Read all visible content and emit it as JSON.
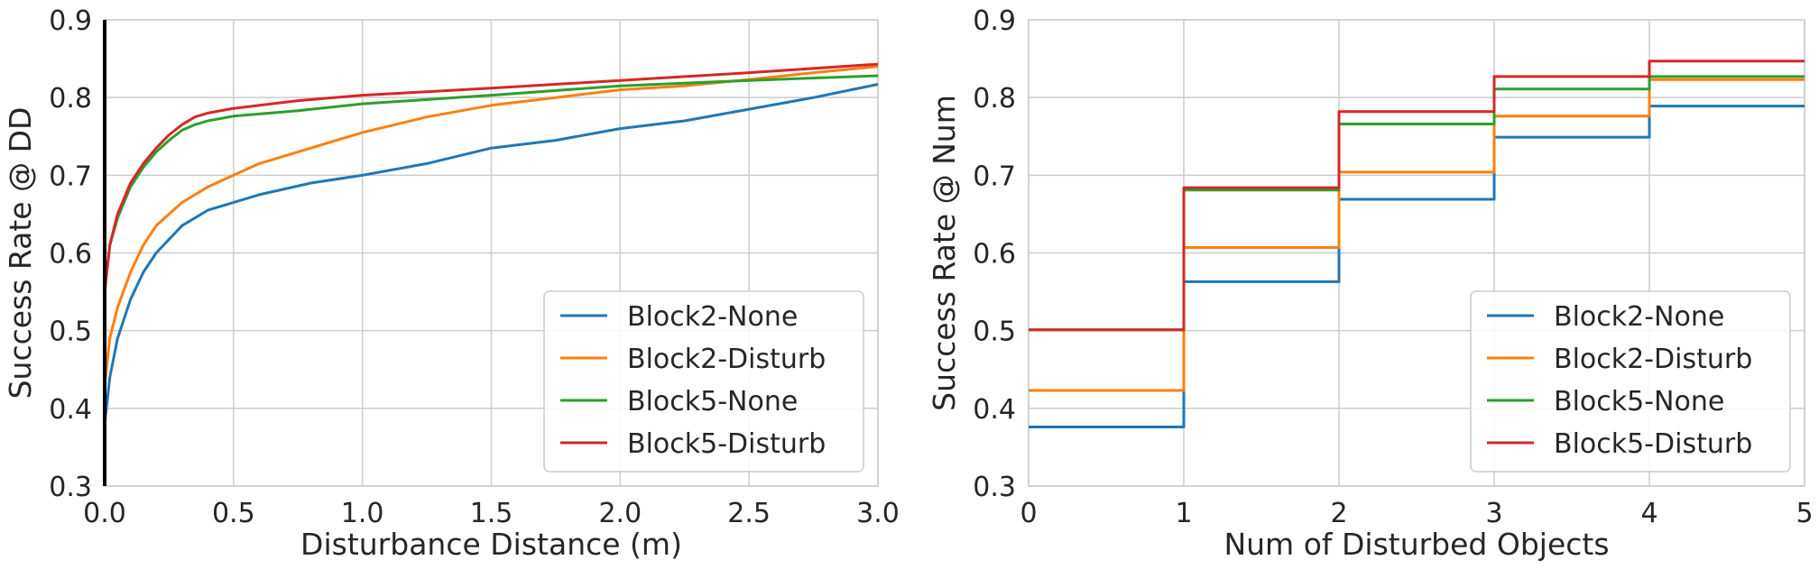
{
  "colors": {
    "Block2-None": "#1f77b4",
    "Block2-Disturb": "#ff7f0e",
    "Block5-None": "#2ca02c",
    "Block5-Disturb": "#d62728"
  },
  "chart_data": [
    {
      "type": "line",
      "xlabel": "Disturbance Distance (m)",
      "ylabel": "Success Rate @ DD",
      "xlim": [
        0.0,
        3.0
      ],
      "ylim": [
        0.3,
        0.9
      ],
      "xticks": [
        "0.0",
        "0.5",
        "1.0",
        "1.5",
        "2.0",
        "2.5",
        "3.0"
      ],
      "yticks": [
        "0.3",
        "0.4",
        "0.5",
        "0.6",
        "0.7",
        "0.8",
        "0.9"
      ],
      "grid": true,
      "legend": "lower-right",
      "series": [
        {
          "name": "Block2-None",
          "x": [
            0.0,
            0.02,
            0.05,
            0.1,
            0.15,
            0.2,
            0.3,
            0.4,
            0.5,
            0.6,
            0.8,
            1.0,
            1.25,
            1.5,
            1.75,
            2.0,
            2.25,
            2.5,
            2.75,
            3.0
          ],
          "y": [
            0.38,
            0.44,
            0.49,
            0.54,
            0.575,
            0.6,
            0.635,
            0.655,
            0.665,
            0.675,
            0.69,
            0.7,
            0.715,
            0.735,
            0.745,
            0.76,
            0.77,
            0.785,
            0.8,
            0.817
          ]
        },
        {
          "name": "Block2-Disturb",
          "x": [
            0.0,
            0.02,
            0.05,
            0.1,
            0.15,
            0.2,
            0.3,
            0.4,
            0.5,
            0.6,
            0.8,
            1.0,
            1.25,
            1.5,
            1.75,
            2.0,
            2.25,
            2.5,
            2.75,
            3.0
          ],
          "y": [
            0.43,
            0.49,
            0.53,
            0.575,
            0.61,
            0.635,
            0.665,
            0.685,
            0.7,
            0.715,
            0.735,
            0.755,
            0.775,
            0.79,
            0.8,
            0.81,
            0.815,
            0.823,
            0.832,
            0.84
          ]
        },
        {
          "name": "Block5-None",
          "x": [
            0.0,
            0.02,
            0.05,
            0.1,
            0.15,
            0.2,
            0.25,
            0.3,
            0.35,
            0.4,
            0.5,
            0.75,
            1.0,
            1.5,
            2.0,
            2.5,
            3.0
          ],
          "y": [
            0.55,
            0.61,
            0.645,
            0.685,
            0.71,
            0.73,
            0.745,
            0.758,
            0.765,
            0.77,
            0.776,
            0.783,
            0.792,
            0.803,
            0.815,
            0.822,
            0.828
          ]
        },
        {
          "name": "Block5-Disturb",
          "x": [
            0.0,
            0.02,
            0.05,
            0.1,
            0.15,
            0.2,
            0.25,
            0.3,
            0.35,
            0.4,
            0.5,
            0.75,
            1.0,
            1.5,
            2.0,
            2.5,
            3.0
          ],
          "y": [
            0.55,
            0.61,
            0.65,
            0.69,
            0.715,
            0.735,
            0.752,
            0.765,
            0.775,
            0.78,
            0.786,
            0.796,
            0.803,
            0.812,
            0.822,
            0.832,
            0.843
          ]
        }
      ]
    },
    {
      "type": "line",
      "xlabel": "Num of Disturbed Objects",
      "ylabel": "Success Rate @ Num",
      "xlim": [
        0,
        5
      ],
      "ylim": [
        0.3,
        0.9
      ],
      "xticks": [
        "0",
        "1",
        "2",
        "3",
        "4",
        "5"
      ],
      "yticks": [
        "0.3",
        "0.4",
        "0.5",
        "0.6",
        "0.7",
        "0.8",
        "0.9"
      ],
      "grid": true,
      "legend": "lower-right",
      "step": true,
      "series": [
        {
          "name": "Block2-None",
          "x": [
            0,
            1,
            2,
            3,
            4
          ],
          "y": [
            0.376,
            0.563,
            0.669,
            0.749,
            0.789
          ]
        },
        {
          "name": "Block2-Disturb",
          "x": [
            0,
            1,
            2,
            3,
            4
          ],
          "y": [
            0.423,
            0.607,
            0.704,
            0.776,
            0.823
          ]
        },
        {
          "name": "Block5-None",
          "x": [
            0,
            1,
            2,
            3,
            4
          ],
          "y": [
            0.501,
            0.681,
            0.766,
            0.811,
            0.827
          ]
        },
        {
          "name": "Block5-Disturb",
          "x": [
            0,
            1,
            2,
            3,
            4
          ],
          "y": [
            0.501,
            0.684,
            0.782,
            0.827,
            0.847
          ]
        }
      ]
    }
  ]
}
